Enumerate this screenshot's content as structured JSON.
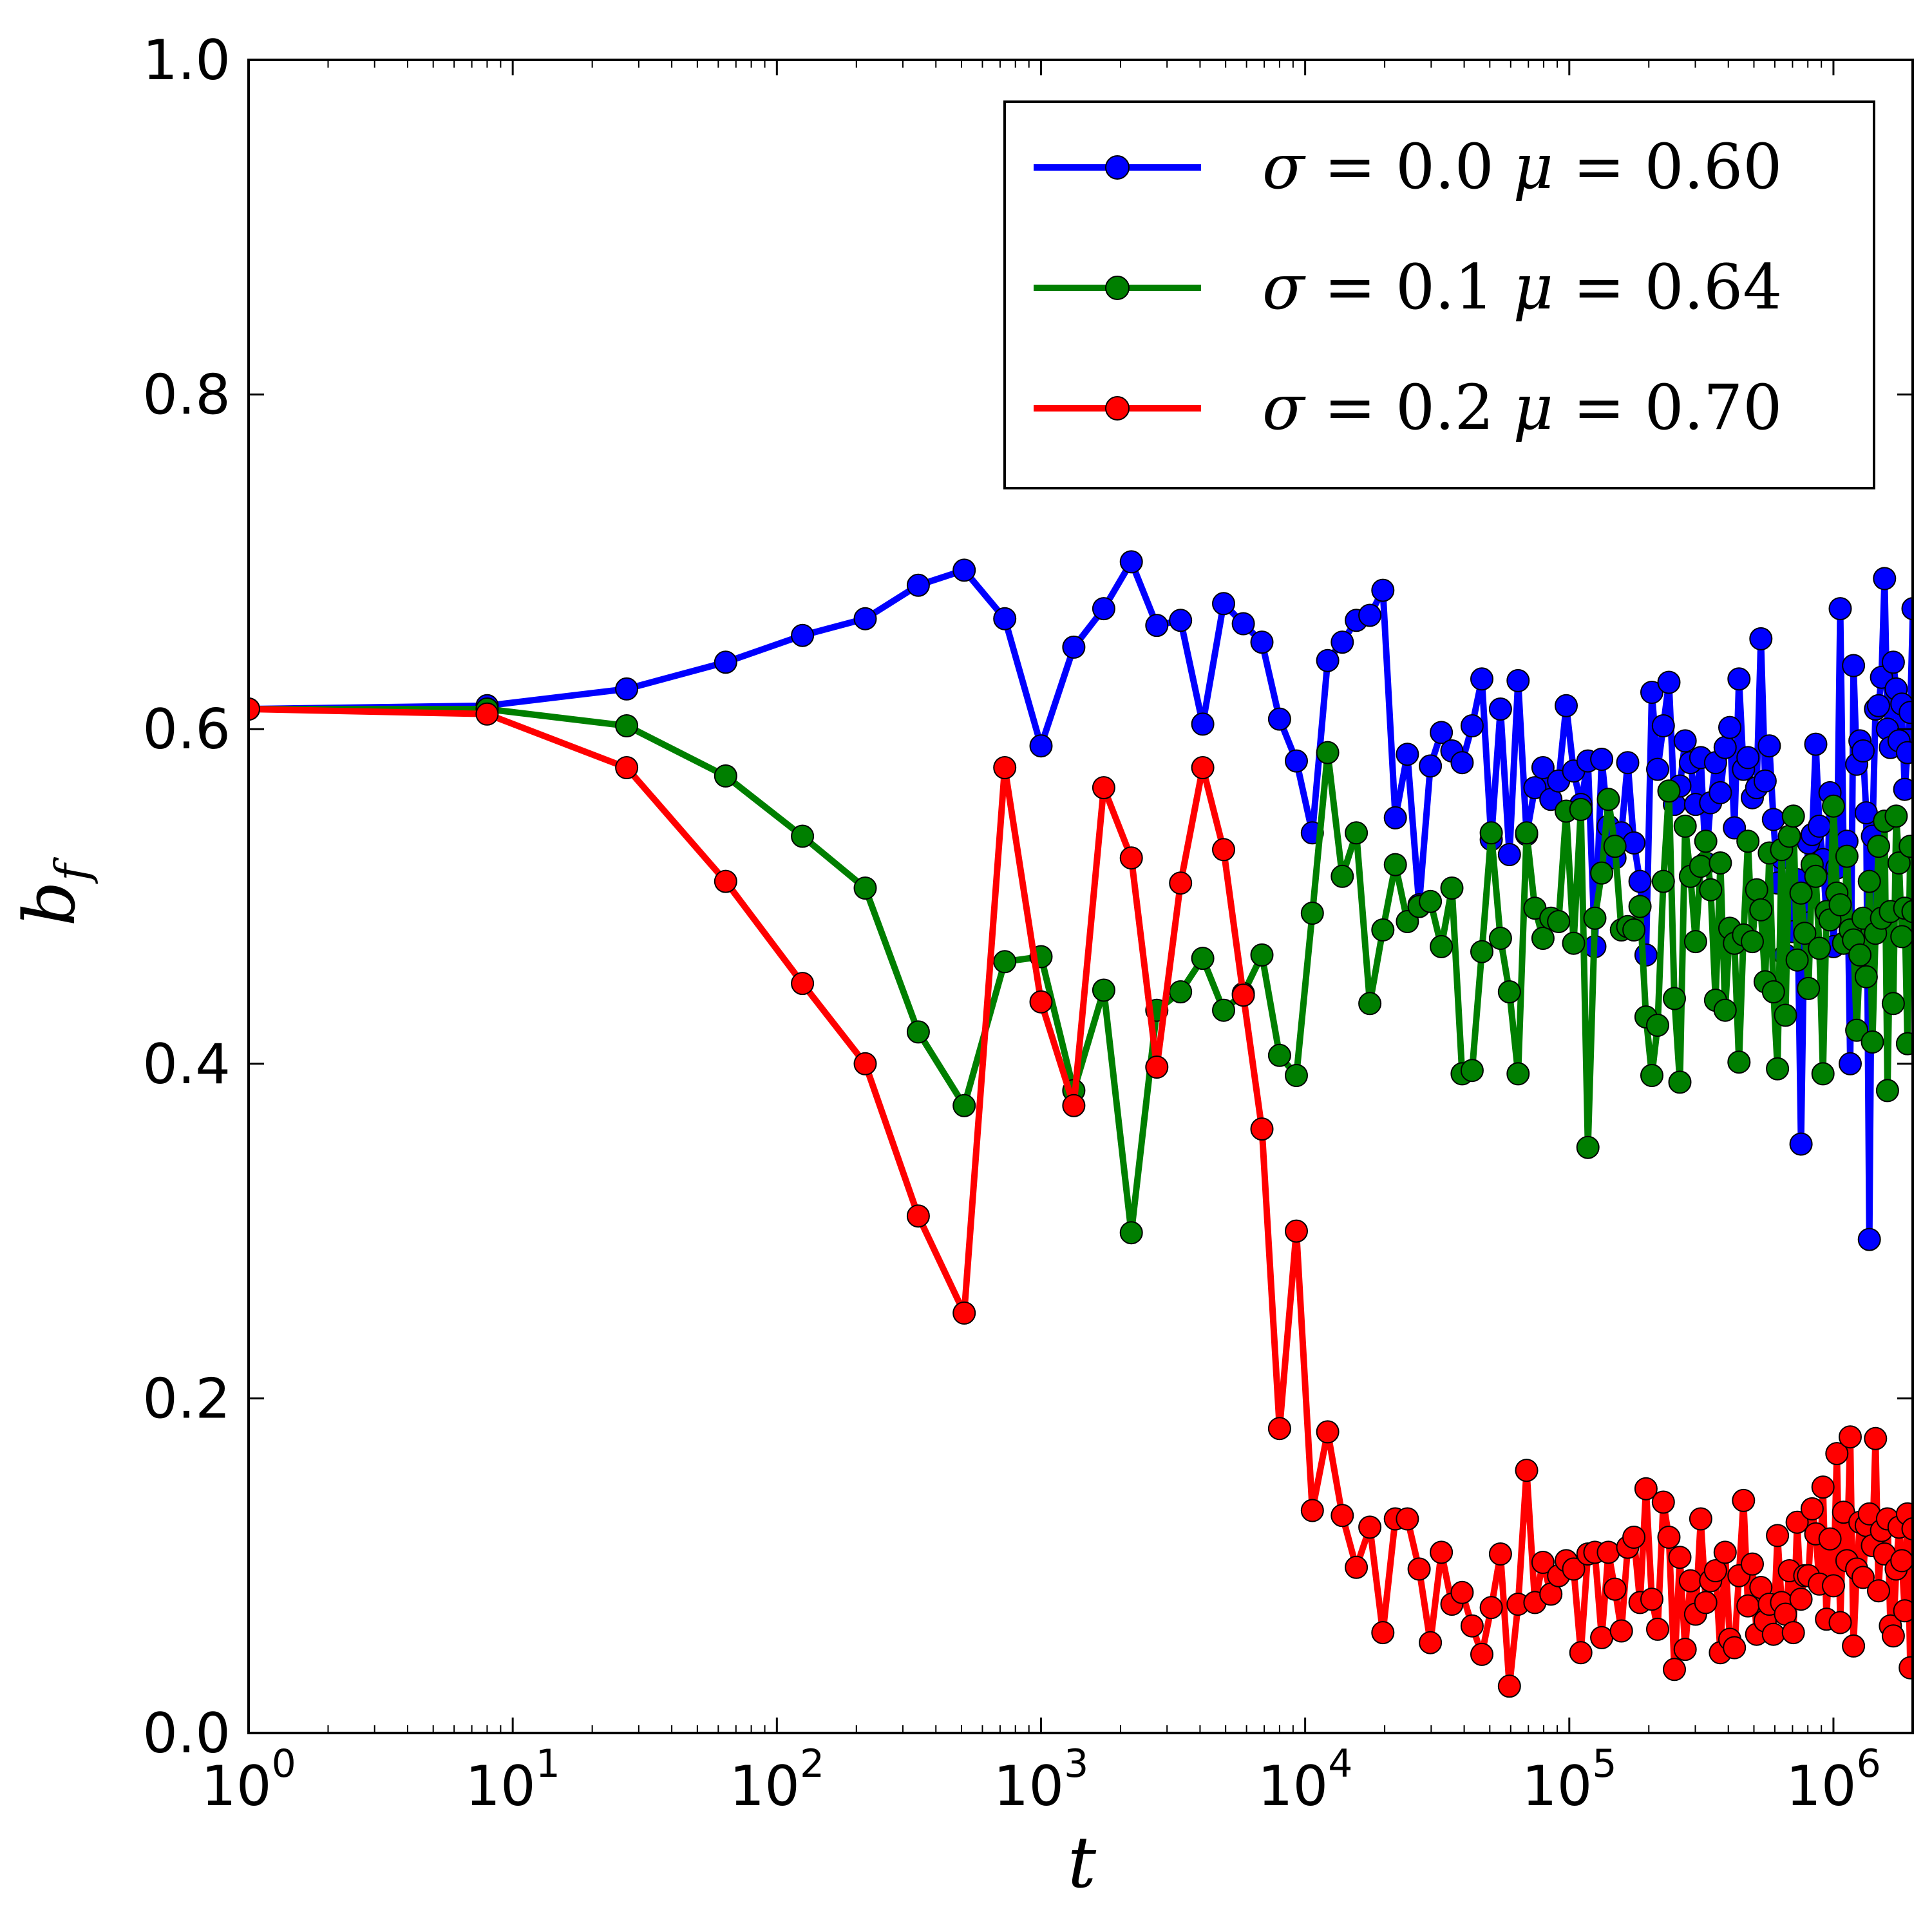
{
  "chart_data": {
    "type": "line",
    "x_scale": "log",
    "xlim_log10": [
      0,
      6.3
    ],
    "ylim": [
      0.0,
      1.0
    ],
    "xlabel": "t",
    "ylabel": "b",
    "ylabel_sub": "f",
    "x_ticks": [
      {
        "base": "10",
        "exp": "0"
      },
      {
        "base": "10",
        "exp": "1"
      },
      {
        "base": "10",
        "exp": "2"
      },
      {
        "base": "10",
        "exp": "3"
      },
      {
        "base": "10",
        "exp": "4"
      },
      {
        "base": "10",
        "exp": "5"
      },
      {
        "base": "10",
        "exp": "6"
      }
    ],
    "y_ticks": [
      "0.0",
      "0.2",
      "0.4",
      "0.6",
      "0.8",
      "1.0"
    ],
    "legend_position": "top-right",
    "series": [
      {
        "name": "σ = 0.0  μ = 0.60",
        "color": "#0000ff",
        "x": [
          1,
          8,
          27,
          64,
          125,
          216,
          343,
          512,
          729,
          1000,
          1331,
          1728,
          2197,
          2744,
          3375,
          4096,
          4913,
          5832,
          6859,
          8000,
          9261,
          10648,
          12167,
          13824,
          15625,
          17576,
          19683,
          21952,
          24389,
          27000,
          29791,
          32768,
          35937,
          39304,
          42875,
          46656,
          50653,
          54872,
          59319,
          64000,
          68921,
          74088,
          79507,
          85184,
          91125,
          97336,
          103823,
          110592,
          117649,
          125000,
          132651,
          140608,
          148877,
          157464,
          166375,
          175616,
          185193,
          195112,
          205379,
          216000,
          226981,
          238328,
          250047,
          262144,
          274625,
          287496,
          300763,
          314432,
          328509,
          343000,
          357911,
          373248,
          389017,
          405224,
          421875,
          438976,
          456533,
          474552,
          493039,
          512000,
          531441,
          551368,
          571787,
          592704,
          614125,
          636056,
          658503,
          681472,
          704969,
          729000,
          753571,
          778688,
          804357,
          830584,
          857375,
          884736,
          912673,
          941192,
          970299,
          1000000,
          1030301,
          1061208,
          1092727,
          1124864,
          1157625,
          1191016,
          1225043,
          1259712,
          1295029,
          1331000,
          1367631,
          1404928,
          1442897,
          1481544,
          1520875,
          1560896,
          1601613,
          1643032,
          1685159,
          1728000,
          1771561,
          1815848,
          1860867,
          1906624,
          1953125,
          2000376
        ],
        "y": [
          0.612,
          0.614,
          0.624,
          0.64,
          0.656,
          0.666,
          0.686,
          0.695,
          0.666,
          0.59,
          0.649,
          0.672,
          0.7,
          0.662,
          0.665,
          0.603,
          0.675,
          0.663,
          0.652,
          0.606,
          0.581,
          0.538,
          0.641,
          0.652,
          0.665,
          0.668,
          0.683,
          0.547,
          0.585,
          0.495,
          0.578,
          0.598,
          0.587,
          0.58,
          0.602,
          0.63,
          0.534,
          0.612,
          0.525,
          0.629,
          0.537,
          0.565,
          0.577,
          0.558,
          0.569,
          0.614,
          0.575,
          0.555,
          0.581,
          0.47,
          0.582,
          0.542,
          0.523,
          0.538,
          0.58,
          0.532,
          0.509,
          0.465,
          0.622,
          0.576,
          0.602,
          0.628,
          0.555,
          0.566,
          0.593,
          0.58,
          0.555,
          0.583,
          0.52,
          0.556,
          0.58,
          0.562,
          0.589,
          0.601,
          0.541,
          0.63,
          0.576,
          0.583,
          0.559,
          0.565,
          0.654,
          0.569,
          0.59,
          0.546,
          0.508,
          0.523,
          0.465,
          0.506,
          0.479,
          0.51,
          0.352,
          0.497,
          0.532,
          0.537,
          0.591,
          0.542,
          0.522,
          0.488,
          0.562,
          0.47,
          0.517,
          0.672,
          0.525,
          0.533,
          0.4,
          0.638,
          0.579,
          0.593,
          0.587,
          0.55,
          0.295,
          0.536,
          0.612,
          0.614,
          0.631,
          0.69,
          0.6,
          0.589,
          0.64,
          0.624,
          0.593,
          0.615,
          0.564,
          0.586,
          0.61,
          0.672
        ]
      },
      {
        "name": "σ = 0.1  μ = 0.64",
        "color": "#007f00",
        "x": [
          1,
          8,
          27,
          64,
          125,
          216,
          343,
          512,
          729,
          1000,
          1331,
          1728,
          2197,
          2744,
          3375,
          4096,
          4913,
          5832,
          6859,
          8000,
          9261,
          10648,
          12167,
          13824,
          15625,
          17576,
          19683,
          21952,
          24389,
          27000,
          29791,
          32768,
          35937,
          39304,
          42875,
          46656,
          50653,
          54872,
          59319,
          64000,
          68921,
          74088,
          79507,
          85184,
          91125,
          97336,
          103823,
          110592,
          117649,
          125000,
          132651,
          140608,
          148877,
          157464,
          166375,
          175616,
          185193,
          195112,
          205379,
          216000,
          226981,
          238328,
          250047,
          262144,
          274625,
          287496,
          300763,
          314432,
          328509,
          343000,
          357911,
          373248,
          389017,
          405224,
          421875,
          438976,
          456533,
          474552,
          493039,
          512000,
          531441,
          551368,
          571787,
          592704,
          614125,
          636056,
          658503,
          681472,
          704969,
          729000,
          753571,
          778688,
          804357,
          830584,
          857375,
          884736,
          912673,
          941192,
          970299,
          1000000,
          1030301,
          1061208,
          1092727,
          1124864,
          1157625,
          1191016,
          1225043,
          1259712,
          1295029,
          1331000,
          1367631,
          1404928,
          1442897,
          1481544,
          1520875,
          1560896,
          1601613,
          1643032,
          1685159,
          1728000,
          1771561,
          1815848,
          1860867,
          1906624,
          1953125,
          2000376
        ],
        "y": [
          0.612,
          0.612,
          0.602,
          0.572,
          0.536,
          0.505,
          0.419,
          0.375,
          0.461,
          0.464,
          0.384,
          0.444,
          0.299,
          0.432,
          0.443,
          0.463,
          0.432,
          0.442,
          0.465,
          0.405,
          0.393,
          0.49,
          0.586,
          0.512,
          0.538,
          0.436,
          0.48,
          0.519,
          0.485,
          0.494,
          0.497,
          0.47,
          0.505,
          0.394,
          0.396,
          0.467,
          0.538,
          0.475,
          0.443,
          0.394,
          0.538,
          0.493,
          0.475,
          0.487,
          0.485,
          0.551,
          0.472,
          0.552,
          0.35,
          0.487,
          0.514,
          0.558,
          0.53,
          0.48,
          0.482,
          0.48,
          0.494,
          0.428,
          0.393,
          0.423,
          0.509,
          0.563,
          0.439,
          0.389,
          0.542,
          0.512,
          0.473,
          0.518,
          0.533,
          0.504,
          0.438,
          0.52,
          0.432,
          0.481,
          0.472,
          0.401,
          0.477,
          0.533,
          0.473,
          0.504,
          0.492,
          0.449,
          0.526,
          0.443,
          0.397,
          0.528,
          0.429,
          0.536,
          0.548,
          0.462,
          0.502,
          0.478,
          0.445,
          0.519,
          0.512,
          0.469,
          0.394,
          0.491,
          0.486,
          0.554,
          0.502,
          0.495,
          0.472,
          0.524,
          0.48,
          0.474,
          0.42,
          0.465,
          0.487,
          0.452,
          0.509,
          0.413,
          0.478,
          0.53,
          0.487,
          0.545,
          0.384,
          0.491,
          0.436,
          0.548,
          0.52,
          0.476,
          0.493,
          0.412,
          0.53,
          0.491
        ]
      },
      {
        "name": "σ = 0.2  μ = 0.70",
        "color": "#ff0000",
        "x": [
          1,
          8,
          27,
          64,
          125,
          216,
          343,
          512,
          729,
          1000,
          1331,
          1728,
          2197,
          2744,
          3375,
          4096,
          4913,
          5832,
          6859,
          8000,
          9261,
          10648,
          12167,
          13824,
          15625,
          17576,
          19683,
          21952,
          24389,
          27000,
          29791,
          32768,
          35937,
          39304,
          42875,
          46656,
          50653,
          54872,
          59319,
          64000,
          68921,
          74088,
          79507,
          85184,
          91125,
          97336,
          103823,
          110592,
          117649,
          125000,
          132651,
          140608,
          148877,
          157464,
          166375,
          175616,
          185193,
          195112,
          205379,
          216000,
          226981,
          238328,
          250047,
          262144,
          274625,
          287496,
          300763,
          314432,
          328509,
          343000,
          357911,
          373248,
          389017,
          405224,
          421875,
          438976,
          456533,
          474552,
          493039,
          512000,
          531441,
          551368,
          571787,
          592704,
          614125,
          636056,
          658503,
          681472,
          704969,
          729000,
          753571,
          778688,
          804357,
          830584,
          857375,
          884736,
          912673,
          941192,
          970299,
          1000000,
          1030301,
          1061208,
          1092727,
          1124864,
          1157625,
          1191016,
          1225043,
          1259712,
          1295029,
          1331000,
          1367631,
          1404928,
          1442897,
          1481544,
          1520875,
          1560896,
          1601613,
          1643032,
          1685159,
          1728000,
          1771561,
          1815848,
          1860867,
          1906624,
          1953125,
          2000376
        ],
        "y": [
          0.612,
          0.609,
          0.577,
          0.509,
          0.448,
          0.4,
          0.309,
          0.251,
          0.577,
          0.437,
          0.375,
          0.565,
          0.523,
          0.398,
          0.508,
          0.577,
          0.528,
          0.441,
          0.361,
          0.182,
          0.3,
          0.133,
          0.18,
          0.13,
          0.099,
          0.123,
          0.06,
          0.128,
          0.128,
          0.098,
          0.054,
          0.108,
          0.077,
          0.084,
          0.064,
          0.047,
          0.075,
          0.107,
          0.028,
          0.077,
          0.157,
          0.078,
          0.102,
          0.083,
          0.094,
          0.103,
          0.098,
          0.048,
          0.107,
          0.108,
          0.057,
          0.108,
          0.086,
          0.061,
          0.111,
          0.117,
          0.078,
          0.146,
          0.08,
          0.062,
          0.138,
          0.117,
          0.038,
          0.105,
          0.05,
          0.091,
          0.071,
          0.128,
          0.078,
          0.091,
          0.097,
          0.048,
          0.108,
          0.056,
          0.051,
          0.094,
          0.139,
          0.076,
          0.101,
          0.059,
          0.087,
          0.067,
          0.077,
          0.059,
          0.118,
          0.078,
          0.071,
          0.097,
          0.06,
          0.126,
          0.08,
          0.094,
          0.094,
          0.134,
          0.119,
          0.089,
          0.147,
          0.068,
          0.116,
          0.088,
          0.167,
          0.066,
          0.132,
          0.103,
          0.177,
          0.052,
          0.098,
          0.126,
          0.093,
          0.124,
          0.131,
          0.112,
          0.176,
          0.085,
          0.121,
          0.107,
          0.128,
          0.064,
          0.058,
          0.098,
          0.123,
          0.103,
          0.073,
          0.131,
          0.039,
          0.122
        ]
      }
    ],
    "legend": [
      {
        "sigma": "0.0",
        "mu": "0.60"
      },
      {
        "sigma": "0.1",
        "mu": "0.64"
      },
      {
        "sigma": "0.2",
        "mu": "0.70"
      }
    ]
  }
}
